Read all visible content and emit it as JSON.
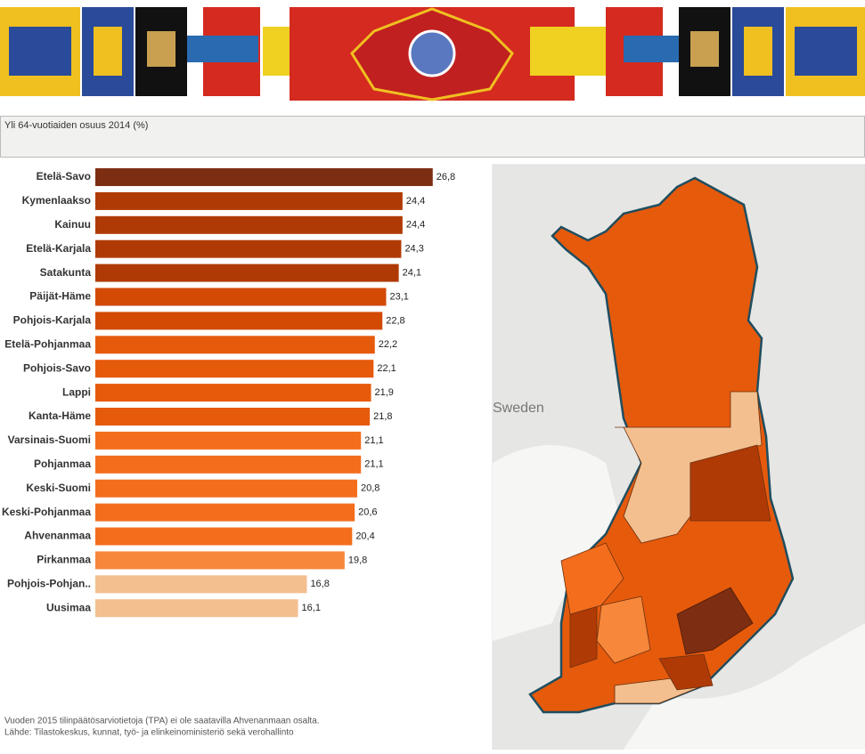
{
  "chart_data": {
    "type": "bar",
    "orientation": "horizontal",
    "title": "Yli 64-vuotiaiden osuus 2014 (%)",
    "categories": [
      "Etelä-Savo",
      "Kymenlaakso",
      "Kainuu",
      "Etelä-Karjala",
      "Satakunta",
      "Päijät-Häme",
      "Pohjois-Karjala",
      "Etelä-Pohjanmaa",
      "Pohjois-Savo",
      "Lappi",
      "Kanta-Häme",
      "Varsinais-Suomi",
      "Pohjanmaa",
      "Keski-Suomi",
      "Keski-Pohjanmaa",
      "Ahvenanmaa",
      "Pirkanmaa",
      "Pohjois-Pohjan..",
      "Uusimaa"
    ],
    "values": [
      26.8,
      24.4,
      24.4,
      24.3,
      24.1,
      23.1,
      22.8,
      22.2,
      22.1,
      21.9,
      21.8,
      21.1,
      21.1,
      20.8,
      20.6,
      20.4,
      19.8,
      16.8,
      16.1
    ],
    "value_labels": [
      "26,8",
      "24,4",
      "24,4",
      "24,3",
      "24,1",
      "23,1",
      "22,8",
      "22,2",
      "22,1",
      "21,9",
      "21,8",
      "21,1",
      "21,1",
      "20,8",
      "20,6",
      "20,4",
      "19,8",
      "16,8",
      "16,1"
    ],
    "colors": [
      "#7d2e12",
      "#b03a06",
      "#b03a06",
      "#b03a06",
      "#b03a06",
      "#d24a04",
      "#d24a04",
      "#e65a0c",
      "#e65a0c",
      "#e65a0c",
      "#e65a0c",
      "#f36d1c",
      "#f36d1c",
      "#f36d1c",
      "#f36d1c",
      "#f36d1c",
      "#f7873a",
      "#f3bf8f",
      "#f3bf8f"
    ],
    "xlim": [
      0,
      30
    ]
  },
  "map": {
    "label": "Sweden"
  },
  "footnotes": [
    "Vuoden 2015 tilinpäätösarviotietoja (TPA) ei ole saatavilla Ahvenanmaan osalta.",
    "Lähde: Tilastokeskus, kunnat, työ- ja elinkeinoministeriö sekä verohallinto"
  ]
}
